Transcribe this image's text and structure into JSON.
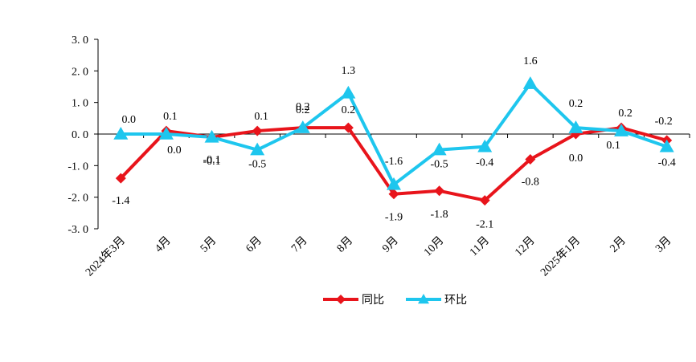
{
  "chart_data": {
    "type": "line",
    "categories": [
      "2024年3月",
      "4月",
      "5月",
      "6月",
      "7月",
      "8月",
      "9月",
      "10月",
      "11月",
      "12月",
      "2025年1月",
      "2月",
      "3月"
    ],
    "series": [
      {
        "name": "同比",
        "color": "#e8141b",
        "marker": "diamond",
        "values": [
          -1.4,
          0.1,
          -0.1,
          0.1,
          0.2,
          0.2,
          -1.9,
          -1.8,
          -2.1,
          -0.8,
          0.0,
          0.2,
          -0.2
        ],
        "labels": [
          "-1.4",
          "0.1",
          "-0.1",
          "0.1",
          "0.2",
          "0.2",
          "-1.9",
          "-1.8",
          "-2.1",
          "-0.8",
          "0.0",
          "0.2",
          "-0.2"
        ]
      },
      {
        "name": "环比",
        "color": "#1ec6ee",
        "marker": "triangle",
        "values": [
          0.0,
          0.0,
          -0.1,
          -0.5,
          0.2,
          1.3,
          -1.6,
          -0.5,
          -0.4,
          1.6,
          0.2,
          0.1,
          -0.4
        ],
        "labels": [
          "0.0",
          "0.0",
          "-0.1",
          "-0.5",
          "0.2",
          "1.3",
          "-1.6",
          "-0.5",
          "-0.4",
          "1.6",
          "0.2",
          "0.1",
          "-0.4"
        ]
      }
    ],
    "yticks": [
      "3.0",
      "2.0",
      "1.0",
      "0.0",
      "-1.0",
      "-2.0",
      "-3.0"
    ],
    "ylim": [
      -3.0,
      3.0
    ],
    "grid": false,
    "legend_position": "bottom"
  }
}
